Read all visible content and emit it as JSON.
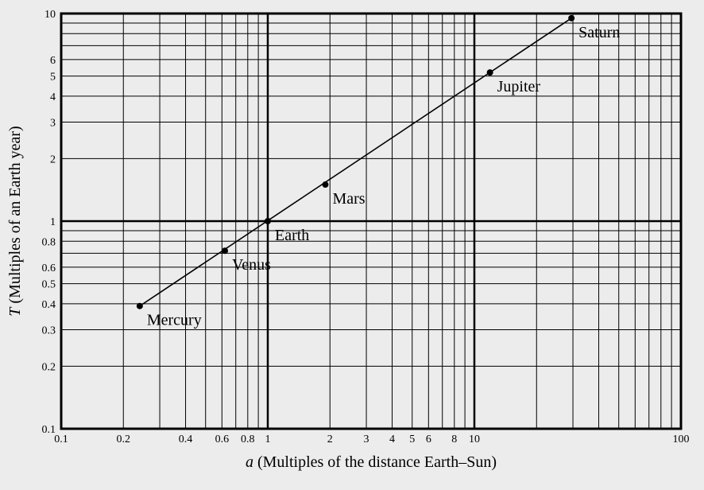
{
  "figure": {
    "background_color": "#ececec",
    "foreground_color": "#000000"
  },
  "chart_data": {
    "type": "scatter",
    "scale": "log-log",
    "title": "",
    "xlabel_symbol": "a",
    "xlabel_text": "(Multiples of the distance Earth–Sun)",
    "ylabel_symbol": "T",
    "ylabel_text": "(Multiples of an Earth year)",
    "xlim": [
      0.1,
      100
    ],
    "ylim": [
      0.1,
      10
    ],
    "grid": "full log minor gridlines; heavy rules at x=1, x=10, y=1 and plot border",
    "legend_position": "none",
    "x_ticks": [
      {
        "value": 0.1,
        "label": "0.1"
      },
      {
        "value": 0.2,
        "label": "0.2"
      },
      {
        "value": 0.4,
        "label": "0.4"
      },
      {
        "value": 0.6,
        "label": "0.6"
      },
      {
        "value": 0.8,
        "label": "0.8"
      },
      {
        "value": 1,
        "label": "1"
      },
      {
        "value": 2,
        "label": "2"
      },
      {
        "value": 3,
        "label": "3"
      },
      {
        "value": 4,
        "label": "4"
      },
      {
        "value": 5,
        "label": "5"
      },
      {
        "value": 6,
        "label": "6"
      },
      {
        "value": 8,
        "label": "8"
      },
      {
        "value": 10,
        "label": "10"
      },
      {
        "value": 100,
        "label": "100"
      }
    ],
    "y_ticks": [
      {
        "value": 0.1,
        "label": "0.1"
      },
      {
        "value": 0.2,
        "label": "0.2"
      },
      {
        "value": 0.3,
        "label": "0.3"
      },
      {
        "value": 0.4,
        "label": "0.4"
      },
      {
        "value": 0.5,
        "label": "0.5"
      },
      {
        "value": 0.6,
        "label": "0.6"
      },
      {
        "value": 0.8,
        "label": "0.8"
      },
      {
        "value": 1,
        "label": "1"
      },
      {
        "value": 2,
        "label": "2"
      },
      {
        "value": 3,
        "label": "3"
      },
      {
        "value": 4,
        "label": "4"
      },
      {
        "value": 5,
        "label": "5"
      },
      {
        "value": 6,
        "label": "6"
      },
      {
        "value": 10,
        "label": "10"
      }
    ],
    "points": [
      {
        "label": "Mercury",
        "x": 0.24,
        "y": 0.39
      },
      {
        "label": "Venus",
        "x": 0.62,
        "y": 0.72
      },
      {
        "label": "Earth",
        "x": 1.0,
        "y": 1.0
      },
      {
        "label": "Mars",
        "x": 1.9,
        "y": 1.5
      },
      {
        "label": "Jupiter",
        "x": 11.9,
        "y": 5.2
      },
      {
        "label": "Saturn",
        "x": 29.5,
        "y": 9.5
      }
    ],
    "line": {
      "type": "straight",
      "from": "Mercury",
      "to": "Saturn"
    }
  }
}
